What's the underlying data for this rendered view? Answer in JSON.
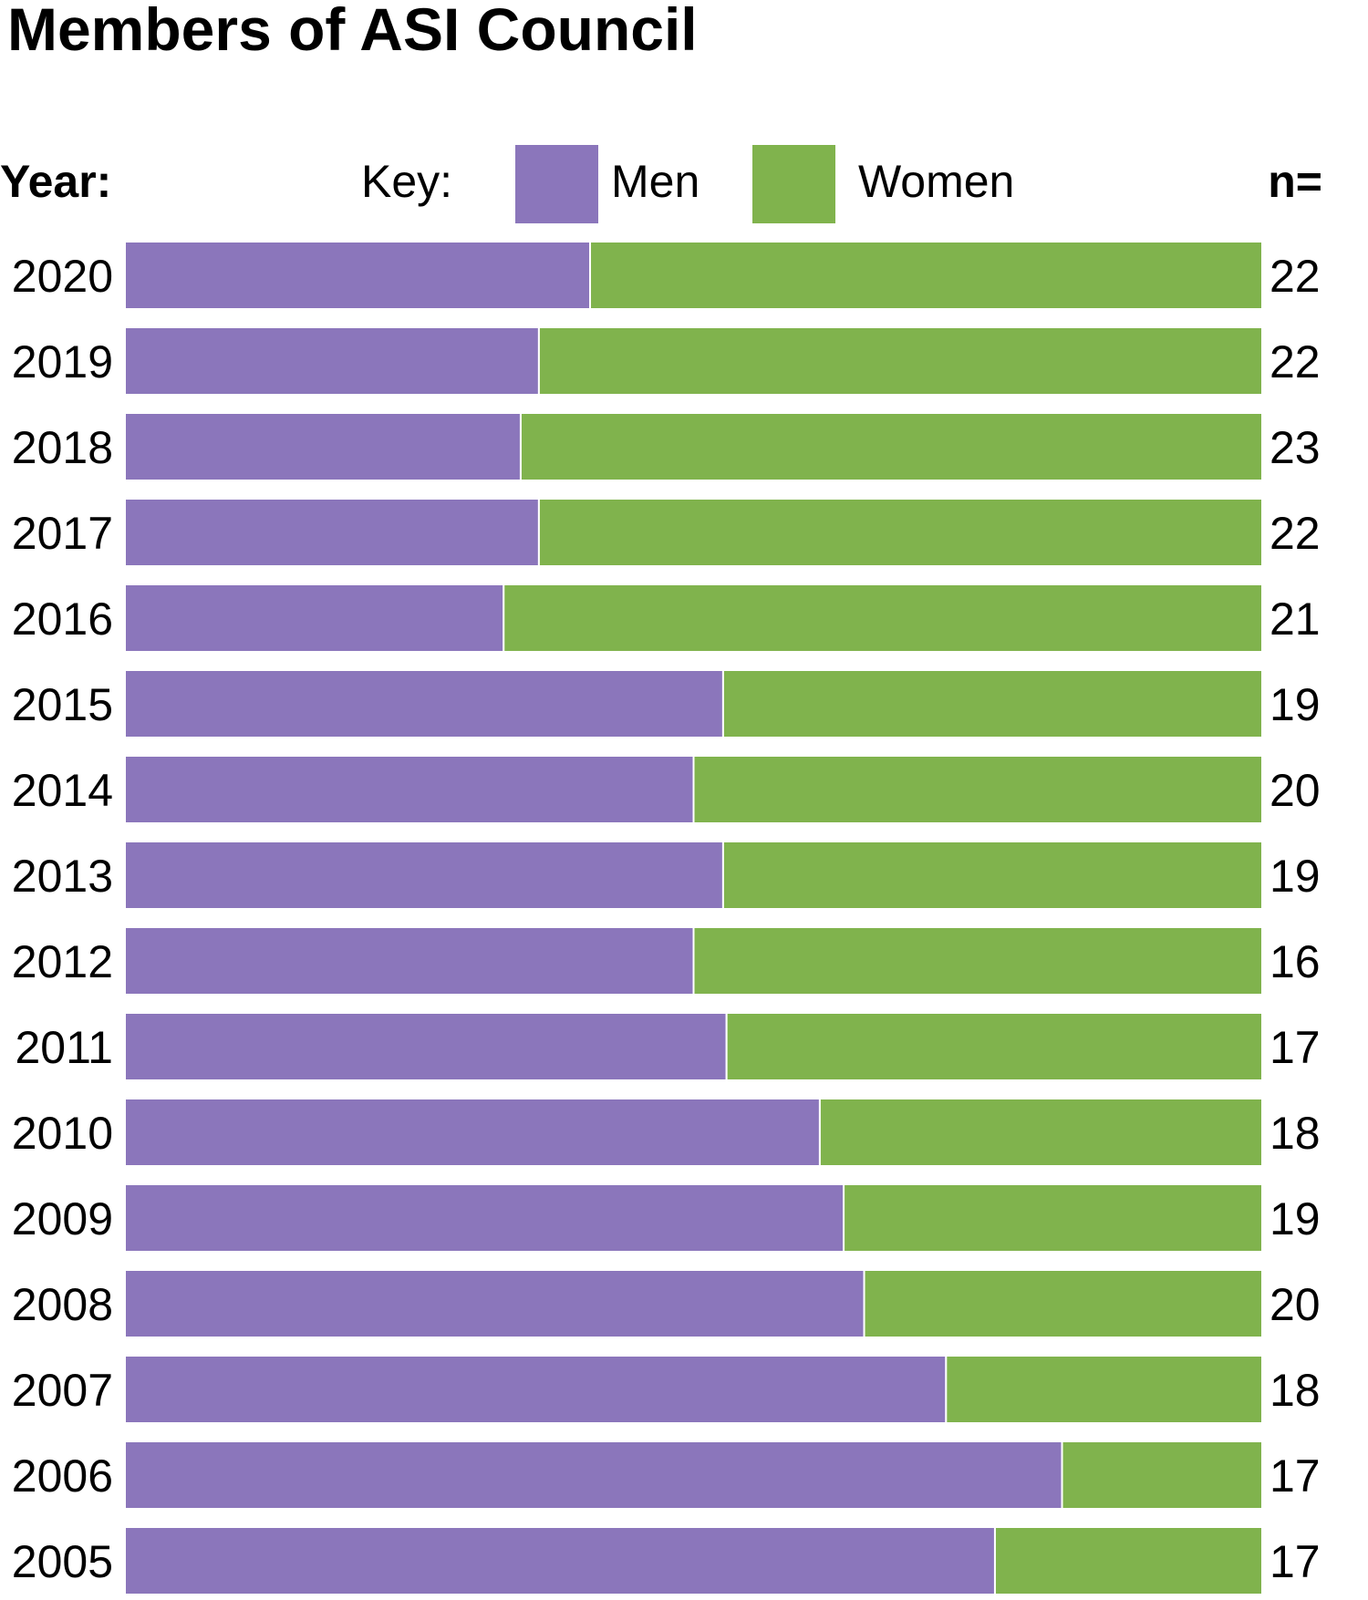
{
  "chart_data": {
    "type": "bar",
    "orientation": "horizontal",
    "stacked": true,
    "normalized": true,
    "title": "Members of ASI Council",
    "year_header": "Year:",
    "n_header": "n=",
    "legend": {
      "label": "Key:",
      "placement": "top",
      "entries": [
        {
          "name": "Men",
          "color": "#8b76bb"
        },
        {
          "name": "Women",
          "color": "#80b34d"
        }
      ]
    },
    "categories": [
      "2020",
      "2019",
      "2018",
      "2017",
      "2016",
      "2015",
      "2014",
      "2013",
      "2012",
      "2011",
      "2010",
      "2009",
      "2008",
      "2007",
      "2006",
      "2005"
    ],
    "n": [
      "22",
      "22",
      "23",
      "22",
      "21",
      "19",
      "20",
      "19",
      "16",
      "17",
      "18",
      "19",
      "20",
      "18",
      "17",
      "17"
    ],
    "series": [
      {
        "name": "Men",
        "color": "#8b76bb",
        "values": [
          0.409,
          0.364,
          0.348,
          0.364,
          0.333,
          0.526,
          0.5,
          0.526,
          0.5,
          0.529,
          0.611,
          0.632,
          0.65,
          0.722,
          0.824,
          0.765
        ]
      },
      {
        "name": "Women",
        "color": "#80b34d",
        "values": [
          0.591,
          0.636,
          0.652,
          0.636,
          0.667,
          0.474,
          0.5,
          0.474,
          0.5,
          0.471,
          0.389,
          0.368,
          0.35,
          0.278,
          0.176,
          0.235
        ]
      }
    ],
    "xlim": [
      0,
      1
    ],
    "grid": false
  }
}
